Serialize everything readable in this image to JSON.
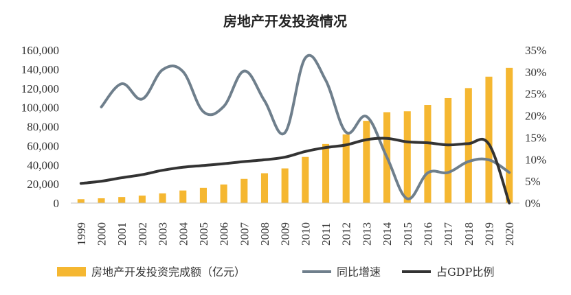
{
  "chart_data": {
    "type": "bar",
    "title": "房地产开发投资情况",
    "categories": [
      "1999",
      "2000",
      "2001",
      "2002",
      "2003",
      "2004",
      "2005",
      "2006",
      "2007",
      "2008",
      "2009",
      "2010",
      "2011",
      "2012",
      "2013",
      "2014",
      "2015",
      "2016",
      "2017",
      "2018",
      "2019",
      "2020"
    ],
    "y_left": {
      "min": 0,
      "max": 160000,
      "ticks": [
        "0",
        "20,000",
        "40,000",
        "60,000",
        "80,000",
        "100,000",
        "120,000",
        "140,000",
        "160,000"
      ]
    },
    "y_right": {
      "min": 0,
      "max": 35,
      "ticks": [
        "0%",
        "5%",
        "10%",
        "15%",
        "20%",
        "25%",
        "30%",
        "35%"
      ]
    },
    "series": [
      {
        "name": "房地产开发投资完成额（亿元）",
        "type": "bar",
        "axis": "left",
        "color": "#F5B731",
        "values": [
          4100,
          4984,
          6344,
          7791,
          10154,
          13158,
          15909,
          19423,
          25289,
          31203,
          36242,
          48259,
          61797,
          71804,
          86013,
          95036,
          95979,
          102581,
          109799,
          120264,
          132194,
          141443
        ]
      },
      {
        "name": "同比增速",
        "type": "line",
        "axis": "right",
        "color": "#6F7F8C",
        "values": [
          null,
          22.0,
          27.3,
          23.8,
          30.5,
          30.1,
          20.9,
          22.1,
          30.2,
          23.4,
          16.1,
          33.2,
          28.1,
          16.2,
          19.8,
          10.5,
          1.0,
          6.9,
          7.0,
          9.5,
          9.9,
          7.0
        ]
      },
      {
        "name": "占GDP比例",
        "type": "line",
        "axis": "right",
        "color": "#333333",
        "values": [
          4.5,
          5.0,
          5.8,
          6.5,
          7.5,
          8.2,
          8.6,
          9.0,
          9.5,
          9.9,
          10.5,
          11.8,
          12.7,
          13.3,
          14.5,
          14.8,
          14.0,
          13.8,
          13.3,
          13.6,
          13.5,
          0.0
        ]
      }
    ],
    "legend": {
      "position": "bottom",
      "items": [
        "房地产开发投资完成额（亿元）",
        "同比增速",
        "占GDP比例"
      ]
    },
    "grid": false
  }
}
